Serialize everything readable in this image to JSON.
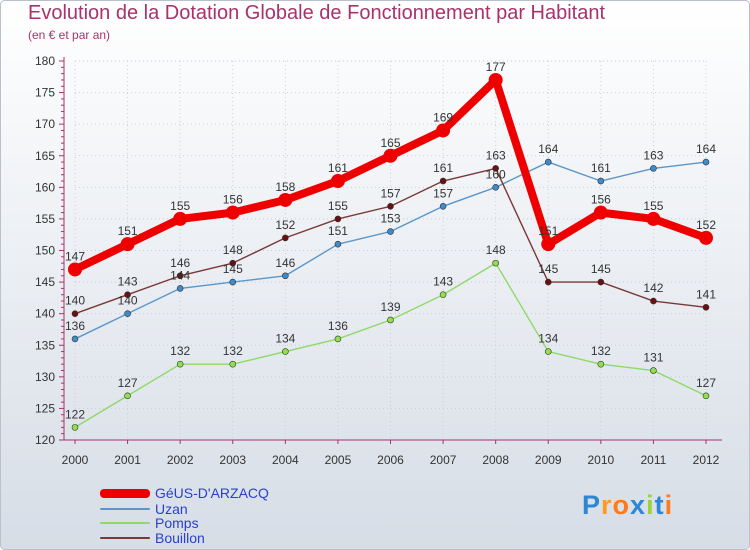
{
  "header": {
    "title": "Evolution de la Dotation Globale de Fonctionnement par Habitant",
    "subtitle": "(en € et par an)"
  },
  "chart_data": {
    "type": "line",
    "x": [
      "2000",
      "2001",
      "2002",
      "2003",
      "2004",
      "2005",
      "2006",
      "2007",
      "2008",
      "2009",
      "2010",
      "2011",
      "2012"
    ],
    "ylim": [
      120,
      180
    ],
    "yticks": [
      120,
      125,
      130,
      135,
      140,
      145,
      150,
      155,
      160,
      165,
      170,
      175,
      180
    ],
    "grid": true,
    "legend": "bottom-left",
    "series": [
      {
        "name": "GéUS-D'ARZACQ",
        "values": [
          147,
          151,
          155,
          156,
          158,
          161,
          165,
          169,
          177,
          151,
          156,
          155,
          152
        ],
        "color": "#ee0000",
        "stroke": "#ee0000"
      },
      {
        "name": "Uzan",
        "values": [
          136,
          140,
          144,
          145,
          146,
          151,
          153,
          157,
          160,
          164,
          161,
          163,
          164
        ],
        "color": "#3d8bc9",
        "stroke": "#5a96c8"
      },
      {
        "name": "Pomps",
        "values": [
          122,
          127,
          132,
          132,
          134,
          136,
          139,
          143,
          148,
          134,
          132,
          131,
          127
        ],
        "color": "#8fe04a",
        "stroke": "#8ed96a"
      },
      {
        "name": "Bouillon",
        "values": [
          140,
          143,
          146,
          148,
          152,
          155,
          157,
          161,
          163,
          145,
          145,
          142,
          141
        ],
        "color": "#6b0f12",
        "stroke": "#7a3838"
      }
    ]
  },
  "logo": {
    "text": "Proxiti",
    "colors": [
      "#2d87d6",
      "#ff9a1a",
      "#ff7a1a",
      "#2d87d6",
      "#9cd33c",
      "#2d87d6",
      "#ff7a1a"
    ]
  }
}
